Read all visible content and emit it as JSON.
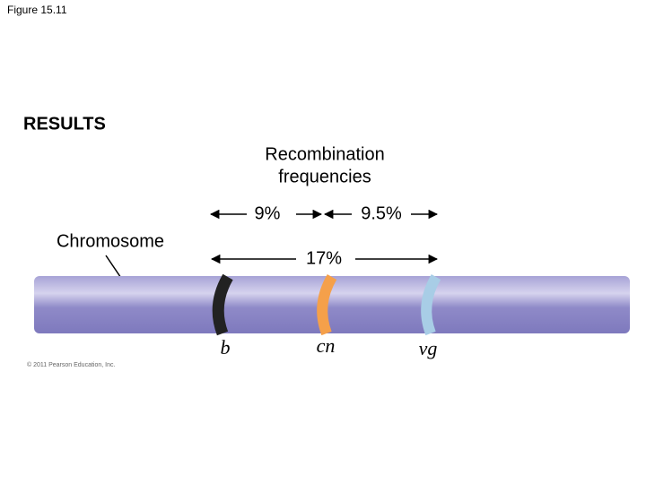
{
  "figure_label": "Figure 15.11",
  "section": "RESULTS",
  "heading": {
    "lines": [
      "Recombination",
      "frequencies"
    ]
  },
  "distances": {
    "b_cn": "9%",
    "cn_vg": "9.5%",
    "b_vg": "17%"
  },
  "chromosome_label": "Chromosome",
  "genes": [
    "b",
    "cn",
    "vg"
  ],
  "copyright": "© 2011 Pearson Education, Inc."
}
